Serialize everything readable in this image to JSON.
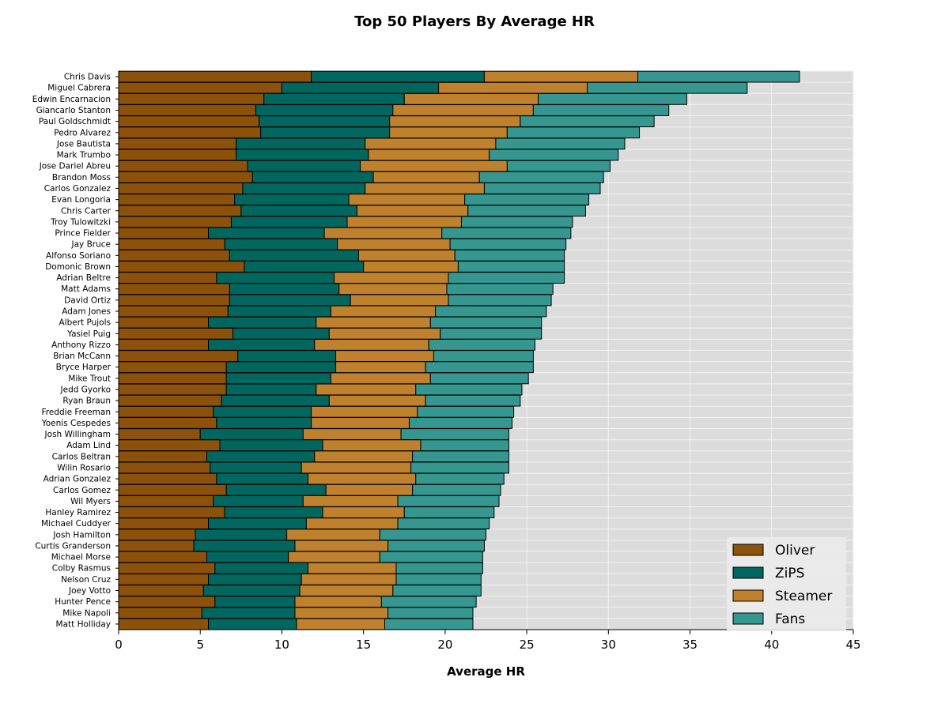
{
  "chart_data": {
    "type": "bar",
    "orientation": "horizontal",
    "stacked": true,
    "title": "Top 50 Players By Average HR",
    "xlabel": "Average HR",
    "ylabel": "",
    "xlim": [
      0,
      45
    ],
    "xticks": [
      0,
      5,
      10,
      15,
      20,
      25,
      30,
      35,
      40,
      45
    ],
    "grid": true,
    "legend_position": "bottom-right",
    "categories": [
      "Chris Davis",
      "Miguel Cabrera",
      "Edwin Encarnacion",
      "Giancarlo Stanton",
      "Paul Goldschmidt",
      "Pedro Alvarez",
      "Jose Bautista",
      "Mark Trumbo",
      "Jose Dariel Abreu",
      "Brandon Moss",
      "Carlos Gonzalez",
      "Evan Longoria",
      "Chris Carter",
      "Troy Tulowitzki",
      "Prince Fielder",
      "Jay Bruce",
      "Alfonso Soriano",
      "Domonic Brown",
      "Adrian Beltre",
      "Matt Adams",
      "David Ortiz",
      "Adam Jones",
      "Albert Pujols",
      "Yasiel Puig",
      "Anthony Rizzo",
      "Brian McCann",
      "Bryce Harper",
      "Mike Trout",
      "Jedd Gyorko",
      "Ryan Braun",
      "Freddie Freeman",
      "Yoenis Cespedes",
      "Josh Willingham",
      "Adam Lind",
      "Carlos Beltran",
      "Wilin Rosario",
      "Adrian Gonzalez",
      "Carlos Gomez",
      "Wil Myers",
      "Hanley Ramirez",
      "Michael Cuddyer",
      "Josh Hamilton",
      "Curtis Granderson",
      "Michael Morse",
      "Colby Rasmus",
      "Nelson Cruz",
      "Joey Votto",
      "Hunter Pence",
      "Mike Napoli",
      "Matt Holliday"
    ],
    "series": [
      {
        "name": "Oliver",
        "color": "#8c510a",
        "values": [
          11.8,
          10.0,
          8.9,
          8.4,
          8.6,
          8.7,
          7.2,
          7.2,
          7.9,
          8.2,
          7.6,
          7.1,
          7.5,
          6.9,
          5.5,
          6.5,
          6.8,
          7.7,
          6.0,
          6.8,
          6.8,
          6.7,
          5.5,
          7.0,
          5.5,
          7.3,
          6.6,
          6.6,
          6.6,
          6.3,
          5.8,
          6.0,
          5.0,
          6.2,
          5.4,
          5.6,
          6.0,
          6.6,
          5.8,
          6.5,
          5.5,
          4.7,
          4.6,
          5.4,
          5.9,
          5.5,
          5.2,
          5.9,
          5.1,
          5.5
        ]
      },
      {
        "name": "ZiPS",
        "color": "#01665e",
        "values": [
          10.6,
          9.6,
          8.6,
          8.4,
          8.0,
          7.9,
          7.9,
          8.1,
          6.9,
          7.4,
          7.5,
          7.0,
          7.1,
          7.1,
          7.1,
          6.9,
          7.9,
          7.3,
          7.2,
          6.7,
          7.4,
          6.3,
          6.6,
          5.9,
          6.5,
          6.0,
          6.7,
          6.4,
          5.5,
          6.6,
          6.0,
          5.8,
          6.3,
          6.3,
          6.6,
          5.6,
          5.6,
          6.1,
          5.5,
          6.0,
          6.0,
          5.6,
          6.2,
          5.0,
          5.7,
          5.7,
          5.9,
          4.9,
          5.7,
          5.4
        ]
      },
      {
        "name": "Steamer",
        "color": "#bf812d",
        "values": [
          9.4,
          9.1,
          8.2,
          8.6,
          8.0,
          7.2,
          8.0,
          7.4,
          9.0,
          6.5,
          7.3,
          7.1,
          6.8,
          7.0,
          7.2,
          6.9,
          5.9,
          5.8,
          7.0,
          6.6,
          6.0,
          6.4,
          7.0,
          6.8,
          7.0,
          6.0,
          5.5,
          6.1,
          6.1,
          5.9,
          6.5,
          6.0,
          6.0,
          6.0,
          6.0,
          6.7,
          6.6,
          5.3,
          5.8,
          5.0,
          5.6,
          5.7,
          5.7,
          5.6,
          5.4,
          5.8,
          5.7,
          5.3,
          5.7,
          5.4
        ]
      },
      {
        "name": "Fans",
        "color": "#35978f",
        "values": [
          9.9,
          9.8,
          9.1,
          8.3,
          8.2,
          8.1,
          7.9,
          7.9,
          6.3,
          7.6,
          7.1,
          7.6,
          7.2,
          6.8,
          7.9,
          7.1,
          6.7,
          6.5,
          7.1,
          6.5,
          6.3,
          6.8,
          6.8,
          6.2,
          6.5,
          6.1,
          6.6,
          6.0,
          6.5,
          5.8,
          5.9,
          6.3,
          6.6,
          5.4,
          5.9,
          6.0,
          5.4,
          5.4,
          6.2,
          5.5,
          5.6,
          6.5,
          5.9,
          6.3,
          5.3,
          5.2,
          5.4,
          5.8,
          5.2,
          5.4
        ]
      }
    ]
  }
}
